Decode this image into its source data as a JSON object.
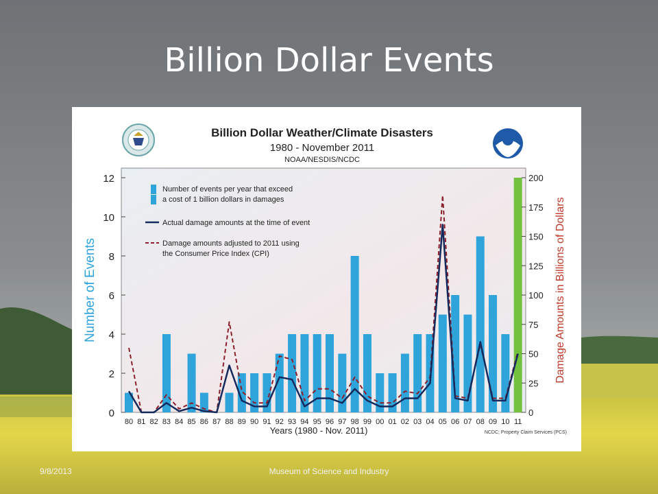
{
  "slide": {
    "title": "Billion Dollar Events",
    "footer_date": "9/8/2013",
    "footer_center": "Museum of Science and Industry"
  },
  "chart_data": {
    "type": "bar",
    "title": "Billion Dollar Weather/Climate Disasters",
    "subtitle": "1980 - November 2011",
    "source": "NOAA/NESDIS/NCDC",
    "credit": "NCDC; Property Claim Services (PCS)",
    "xlabel": "Years (1980 - Nov. 2011)",
    "ylabel": "Number of Events",
    "y2label": "Damage Amounts in Billions of Dollars",
    "ylim": [
      0,
      12
    ],
    "y2lim": [
      0,
      200
    ],
    "yticks": [
      "0",
      "2",
      "4",
      "6",
      "8",
      "10",
      "12"
    ],
    "y2ticks": [
      "0",
      "25",
      "50",
      "75",
      "100",
      "125",
      "150",
      "175",
      "200"
    ],
    "categories": [
      "80",
      "81",
      "82",
      "83",
      "84",
      "85",
      "86",
      "87",
      "88",
      "89",
      "90",
      "91",
      "92",
      "93",
      "94",
      "95",
      "96",
      "97",
      "98",
      "99",
      "00",
      "01",
      "02",
      "03",
      "04",
      "05",
      "06",
      "07",
      "08",
      "09",
      "10",
      "11"
    ],
    "series": [
      {
        "name": "Number of events per year that exceed a cost of 1 billion dollars in damages",
        "axis": "left",
        "style": "bar",
        "values": [
          1,
          0,
          0,
          4,
          0,
          3,
          1,
          0,
          1,
          2,
          2,
          2,
          3,
          4,
          4,
          4,
          4,
          3,
          8,
          4,
          2,
          2,
          3,
          4,
          4,
          5,
          6,
          5,
          9,
          6,
          4,
          12
        ]
      },
      {
        "name": "Actual damage amounts at the time of event",
        "axis": "right",
        "style": "line",
        "values": [
          18,
          0,
          0,
          8,
          1,
          4,
          1,
          0,
          40,
          10,
          5,
          5,
          30,
          28,
          5,
          12,
          12,
          8,
          20,
          10,
          5,
          5,
          12,
          12,
          25,
          160,
          12,
          10,
          60,
          10,
          10,
          50
        ]
      },
      {
        "name": "Damage amounts adjusted to 2011 using the Consumer Price Index (CPI)",
        "axis": "right",
        "style": "dashed-line",
        "values": [
          55,
          0,
          0,
          15,
          3,
          8,
          3,
          0,
          77,
          18,
          8,
          8,
          48,
          45,
          10,
          20,
          20,
          12,
          30,
          14,
          8,
          8,
          18,
          16,
          30,
          185,
          14,
          12,
          58,
          12,
          12,
          52
        ]
      }
    ],
    "legend": [
      "Number of events per year that exceed",
      "a cost of 1 billion dollars in damages",
      "Actual damage amounts at the time of event",
      "Damage amounts adjusted to 2011 using",
      "the Consumer Price Index (CPI)"
    ],
    "legend_position": "top-left",
    "highlight_category": "11",
    "colors": {
      "bar": "#2ea4db",
      "bar_highlight": "#72c240",
      "actual": "#142a5c",
      "cpi": "#8b1f2a",
      "left_axis_label": "#2ea4db",
      "right_axis_label": "#c0392b"
    },
    "logos": {
      "left": "Department of Commerce seal",
      "right": "NOAA"
    }
  }
}
